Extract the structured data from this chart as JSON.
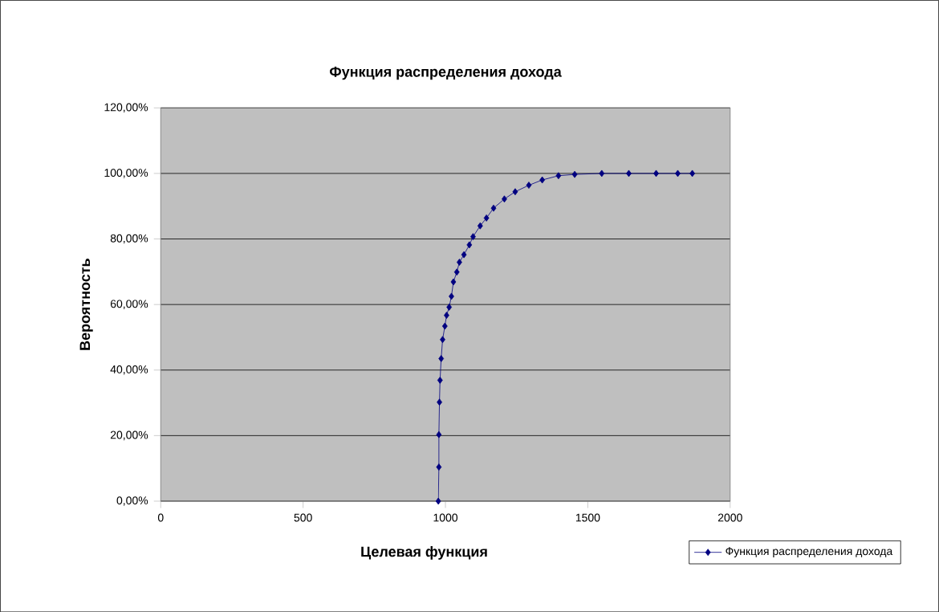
{
  "chart_data": {
    "type": "line",
    "title": "Функция распределения дохода",
    "xlabel": "Целевая функция",
    "ylabel": "Вероятность",
    "series": [
      {
        "name": "Функция распределения дохода",
        "color": "#000080",
        "x": [
          975,
          977,
          977,
          979,
          981,
          985,
          990,
          998,
          1004,
          1013,
          1021,
          1028,
          1040,
          1049,
          1065,
          1084,
          1097,
          1122,
          1144,
          1169,
          1207,
          1245,
          1293,
          1340,
          1397,
          1454,
          1549,
          1644,
          1740,
          1816,
          1867
        ],
        "values": [
          0,
          10.4,
          20.3,
          30.2,
          36.9,
          43.5,
          49.3,
          53.4,
          56.7,
          59.2,
          62.5,
          66.9,
          69.9,
          72.9,
          75.2,
          78.2,
          80.7,
          84.0,
          86.4,
          89.4,
          92.2,
          94.4,
          96.4,
          98.0,
          99.3,
          99.7,
          100,
          100,
          100,
          100,
          100
        ]
      }
    ],
    "xlim": [
      0,
      2000
    ],
    "xticks": [
      0,
      500,
      1000,
      1500,
      2000
    ],
    "ylim": [
      0,
      120
    ],
    "yticks": [
      {
        "value": 0,
        "label": "0,00%"
      },
      {
        "value": 20,
        "label": "20,00%"
      },
      {
        "value": 40,
        "label": "40,00%"
      },
      {
        "value": 60,
        "label": "60,00%"
      },
      {
        "value": 80,
        "label": "80,00%"
      },
      {
        "value": 100,
        "label": "100,00%"
      },
      {
        "value": 120,
        "label": "120,00%"
      }
    ],
    "grid": "y",
    "legend": "bottom right",
    "marker": "diamond",
    "line_style": "solid"
  }
}
